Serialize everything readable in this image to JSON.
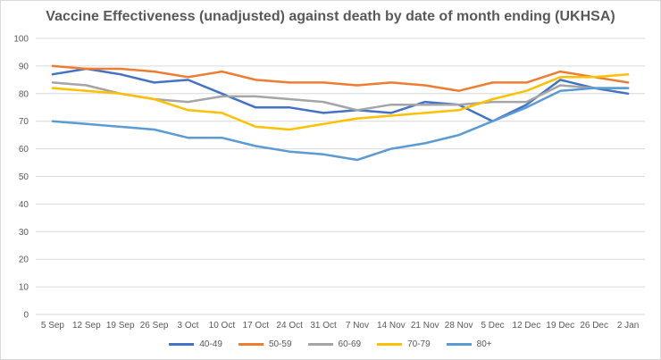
{
  "chart_data": {
    "type": "line",
    "title": "Vaccine Effectiveness (unadjusted) against death by date of month ending (UKHSA)",
    "xlabel": "",
    "ylabel": "",
    "ylim": [
      0,
      100
    ],
    "yticks": [
      0,
      10,
      20,
      30,
      40,
      50,
      60,
      70,
      80,
      90,
      100
    ],
    "grid": true,
    "legend_position": "bottom",
    "categories": [
      "5 Sep",
      "12 Sep",
      "19 Sep",
      "26 Sep",
      "3 Oct",
      "10 Oct",
      "17 Oct",
      "24 Oct",
      "31 Oct",
      "7 Nov",
      "14 Nov",
      "21 Nov",
      "28 Nov",
      "5 Dec",
      "12 Dec",
      "19 Dec",
      "26 Dec",
      "2 Jan"
    ],
    "series": [
      {
        "name": "40-49",
        "color": "#4472c4",
        "values": [
          87,
          89,
          87,
          84,
          85,
          80,
          75,
          75,
          73,
          74,
          73,
          77,
          76,
          70,
          76,
          85,
          82,
          80
        ]
      },
      {
        "name": "50-59",
        "color": "#ed7d31",
        "values": [
          90,
          89,
          89,
          88,
          86,
          88,
          85,
          84,
          84,
          83,
          84,
          83,
          81,
          84,
          84,
          88,
          86,
          84
        ]
      },
      {
        "name": "60-69",
        "color": "#a5a5a5",
        "values": [
          84,
          83,
          80,
          78,
          77,
          79,
          79,
          78,
          77,
          74,
          76,
          76,
          76,
          77,
          77,
          83,
          82,
          82
        ]
      },
      {
        "name": "70-79",
        "color": "#ffc000",
        "values": [
          82,
          81,
          80,
          78,
          74,
          73,
          68,
          67,
          69,
          71,
          72,
          73,
          74,
          78,
          81,
          86,
          86,
          87
        ]
      },
      {
        "name": "80+",
        "color": "#5b9bd5",
        "values": [
          70,
          69,
          68,
          67,
          64,
          64,
          61,
          59,
          58,
          56,
          60,
          62,
          65,
          70,
          75,
          81,
          82,
          82
        ]
      }
    ]
  }
}
